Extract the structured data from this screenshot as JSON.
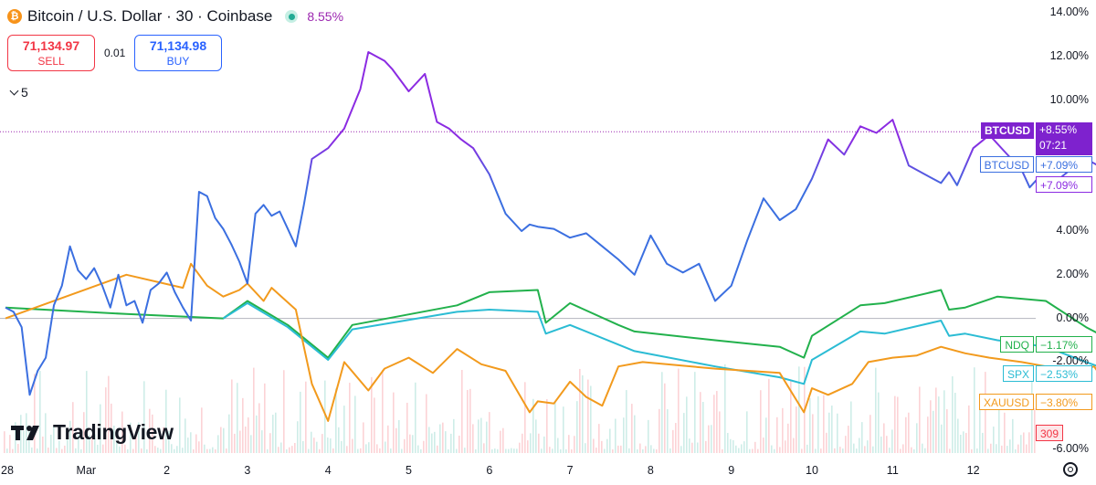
{
  "header": {
    "logo_glyph": "₿",
    "title": "Bitcoin / U.S. Dollar · 30 · Coinbase",
    "change": "8.55%"
  },
  "trade": {
    "sell_price": "71,134.97",
    "sell_label": "SELL",
    "spread": "0.01",
    "buy_price": "71,134.98",
    "buy_label": "BUY"
  },
  "collapse_count": "5",
  "branding": {
    "logo_text": "TradingView"
  },
  "colors": {
    "btc_upper": "#8b2be2",
    "btc_lower": "#3b6fe0",
    "ndq": "#22b14c",
    "spx": "#2bbcd4",
    "xauusd": "#f29a1d",
    "sell": "#f23645",
    "buy": "#2962ff"
  },
  "chart_data": {
    "type": "line",
    "y_unit": "%",
    "ylim": [
      -6,
      14
    ],
    "y_ticks": [
      "14.00%",
      "12.00%",
      "10.00%",
      "8.00%",
      "6.00%",
      "4.00%",
      "2.00%",
      "0.00%",
      "-2.00%",
      "-4.00%",
      "-6.00%"
    ],
    "x_ticks": [
      "28",
      "Mar",
      "2",
      "3",
      "4",
      "5",
      "6",
      "7",
      "8",
      "9",
      "10",
      "11",
      "12"
    ],
    "x_range": [
      -1,
      12.9
    ],
    "series": [
      {
        "name": "BTCUSD",
        "color": "#3b6fe0",
        "x": [
          -1,
          -0.9,
          -0.8,
          -0.7,
          -0.6,
          -0.5,
          -0.4,
          -0.3,
          -0.2,
          -0.1,
          0,
          0.1,
          0.2,
          0.3,
          0.4,
          0.5,
          0.6,
          0.7,
          0.8,
          0.9,
          1.0,
          1.1,
          1.2,
          1.3,
          1.4,
          1.5,
          1.6,
          1.7,
          1.8,
          1.9,
          2.0,
          2.1,
          2.2,
          2.3,
          2.4,
          2.5,
          2.6,
          2.7,
          2.8,
          3.0,
          3.2,
          3.4,
          3.5,
          3.7,
          3.8,
          4.0,
          4.2,
          4.35,
          4.5,
          4.65,
          4.8,
          5.0,
          5.2,
          5.4,
          5.5,
          5.6,
          5.8,
          6.0,
          6.2,
          6.4,
          6.6,
          6.8,
          7.0,
          7.2,
          7.4,
          7.6,
          7.8,
          8.0,
          8.2,
          8.4,
          8.6,
          8.8,
          9.0,
          9.2,
          9.4,
          9.6,
          9.8,
          10.0,
          10.2,
          10.4,
          10.6,
          10.7,
          10.8,
          11.0,
          11.2,
          11.4,
          11.6,
          11.7,
          11.8,
          12.0,
          12.2,
          12.4,
          12.6,
          12.8
        ],
        "values": [
          0.5,
          0.3,
          -0.4,
          -3.5,
          -2.4,
          -1.8,
          0.6,
          1.5,
          3.3,
          2.2,
          1.8,
          2.3,
          1.5,
          0.5,
          2.0,
          0.6,
          0.8,
          -0.2,
          1.3,
          1.6,
          2.1,
          1.2,
          0.5,
          -0.1,
          5.8,
          5.6,
          4.6,
          4.1,
          3.4,
          2.6,
          1.6,
          4.8,
          5.2,
          4.7,
          4.9,
          4.1,
          3.3,
          5.2,
          7.3,
          7.8,
          8.7,
          10.5,
          12.2,
          11.8,
          11.4,
          10.4,
          11.2,
          9.0,
          8.7,
          8.2,
          7.8,
          6.6,
          4.8,
          4.0,
          4.3,
          4.2,
          4.1,
          3.7,
          3.9,
          3.3,
          2.7,
          2.0,
          3.8,
          2.5,
          2.1,
          2.5,
          0.8,
          1.5,
          3.6,
          5.5,
          4.5,
          5.0,
          6.4,
          8.2,
          7.5,
          8.8,
          8.5,
          9.1,
          7.0,
          6.6,
          6.2,
          6.7,
          6.1,
          7.8,
          8.4,
          7.6,
          6.8,
          6.0,
          6.4,
          6.2,
          6.8,
          7.3,
          6.9,
          7.09
        ]
      },
      {
        "name": "NDQ",
        "color": "#22b14c",
        "x": [
          -1,
          0.5,
          1.7,
          2.0,
          2.5,
          3.0,
          3.3,
          4.6,
          5.0,
          5.6,
          5.7,
          6.0,
          6.6,
          6.8,
          7.8,
          8.6,
          8.9,
          9.0,
          9.6,
          9.9,
          10.6,
          10.7,
          10.9,
          11.3,
          11.9,
          12.4,
          12.8
        ],
        "values": [
          0.5,
          0.2,
          0.0,
          0.8,
          -0.3,
          -1.8,
          -0.3,
          0.6,
          1.2,
          1.3,
          -0.2,
          0.7,
          -0.3,
          -0.6,
          -1.0,
          -1.3,
          -1.8,
          -0.8,
          0.6,
          0.7,
          1.3,
          0.4,
          0.5,
          1.0,
          0.8,
          -0.4,
          -1.17
        ]
      },
      {
        "name": "SPX",
        "color": "#2bbcd4",
        "x": [
          1.7,
          2.0,
          2.5,
          3.0,
          3.3,
          4.6,
          5.0,
          5.6,
          5.7,
          6.0,
          6.6,
          6.8,
          7.8,
          8.6,
          8.9,
          9.0,
          9.6,
          9.9,
          10.6,
          10.7,
          10.9,
          11.3,
          11.9,
          12.4,
          12.8
        ],
        "values": [
          0.0,
          0.7,
          -0.4,
          -1.9,
          -0.5,
          0.3,
          0.4,
          0.3,
          -0.7,
          -0.3,
          -1.2,
          -1.5,
          -2.2,
          -2.7,
          -3.0,
          -1.9,
          -0.6,
          -0.7,
          -0.1,
          -0.8,
          -0.7,
          -1.0,
          -1.3,
          -2.0,
          -2.53
        ]
      },
      {
        "name": "XAUUSD",
        "color": "#f29a1d",
        "x": [
          -1,
          0.5,
          1.2,
          1.3,
          1.5,
          1.7,
          1.9,
          2.0,
          2.2,
          2.3,
          2.6,
          2.8,
          3.0,
          3.2,
          3.5,
          3.7,
          4.0,
          4.3,
          4.6,
          4.9,
          5.2,
          5.5,
          5.6,
          5.8,
          6.0,
          6.2,
          6.4,
          6.6,
          6.9,
          7.8,
          8.6,
          8.9,
          9.0,
          9.2,
          9.5,
          9.7,
          10.0,
          10.3,
          10.6,
          10.9,
          11.2,
          11.6,
          11.9,
          12.1,
          12.3,
          12.5,
          12.8
        ],
        "values": [
          0.0,
          2.0,
          1.4,
          2.5,
          1.5,
          1.0,
          1.3,
          1.6,
          0.8,
          1.4,
          0.4,
          -3.0,
          -4.7,
          -2.0,
          -3.3,
          -2.3,
          -1.8,
          -2.5,
          -1.4,
          -2.1,
          -2.4,
          -4.3,
          -3.8,
          -3.9,
          -2.9,
          -3.6,
          -4.0,
          -2.2,
          -2.0,
          -2.3,
          -2.5,
          -4.3,
          -3.2,
          -3.5,
          -3.0,
          -2.0,
          -1.8,
          -1.7,
          -1.3,
          -1.6,
          -1.8,
          -2.0,
          -2.2,
          -2.8,
          -2.4,
          -2.2,
          -3.8
        ]
      }
    ],
    "btc_pivot_pct": 7.0,
    "current_line_pct": 8.55,
    "labels": [
      {
        "name": "BTCUSD",
        "value": "+8.55%",
        "time": "07:21",
        "style": "solid",
        "color": "#7e22ce"
      },
      {
        "name": "BTCUSD",
        "value": "+7.09%",
        "style": "outline",
        "color": "#3b6fe0"
      },
      {
        "name": "",
        "value": "+7.09%",
        "style": "outline",
        "color": "#8b2be2"
      },
      {
        "name": "NDQ",
        "value": "−1.17%",
        "style": "outline",
        "color": "#22b14c"
      },
      {
        "name": "SPX",
        "value": "−2.53%",
        "style": "outline",
        "color": "#2bbcd4"
      },
      {
        "name": "XAUUSD",
        "value": "−3.80%",
        "style": "outline",
        "color": "#f29a1d"
      }
    ],
    "volume_label": "309"
  }
}
